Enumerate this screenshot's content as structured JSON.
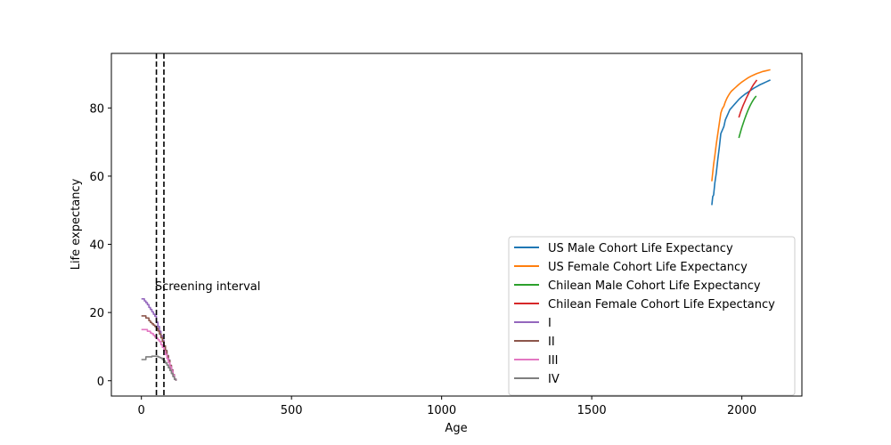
{
  "chart_data": {
    "type": "line",
    "title": "",
    "xlabel": "Age",
    "ylabel": "Life expectancy",
    "xlim": [
      -100,
      2200
    ],
    "ylim": [
      -4.5,
      96
    ],
    "xticks": [
      0,
      500,
      1000,
      1500,
      2000
    ],
    "yticks": [
      0,
      20,
      40,
      60,
      80
    ],
    "grid": false,
    "legend_position": "lower right",
    "series": [
      {
        "name": "US Male Cohort Life Expectancy",
        "color": "#1f77b4",
        "style": "line",
        "x": [
          1900,
          1903,
          1906,
          1910,
          1915,
          1920,
          1925,
          1930,
          1935,
          1940,
          1945,
          1950,
          1955,
          1960,
          1965,
          1970,
          1975,
          1980,
          1985,
          1990,
          2000,
          2010,
          2020,
          2030,
          2040,
          2050,
          2060,
          2070,
          2080,
          2090,
          2095
        ],
        "y": [
          51.5,
          54,
          54.5,
          58,
          61,
          65,
          68.5,
          72.5,
          73.5,
          74.5,
          76.5,
          77.5,
          78.5,
          79.5,
          80,
          80.5,
          81,
          81.5,
          82,
          82.5,
          83.3,
          84,
          84.6,
          85.2,
          85.8,
          86.3,
          86.8,
          87.2,
          87.6,
          88,
          88.2
        ]
      },
      {
        "name": "US Female Cohort Life Expectancy",
        "color": "#ff7f0e",
        "style": "line",
        "x": [
          1900,
          1903,
          1906,
          1910,
          1915,
          1920,
          1925,
          1930,
          1935,
          1940,
          1945,
          1950,
          1955,
          1960,
          1965,
          1970,
          1975,
          1980,
          1985,
          1990,
          2000,
          2010,
          2020,
          2030,
          2040,
          2050,
          2060,
          2070,
          2080,
          2090,
          2095
        ],
        "y": [
          58.5,
          61,
          63.5,
          66,
          69.5,
          72.5,
          75.5,
          78.5,
          79.8,
          80.5,
          81.8,
          82.8,
          83.6,
          84.3,
          84.9,
          85.3,
          85.7,
          86.1,
          86.5,
          86.9,
          87.6,
          88.2,
          88.8,
          89.3,
          89.7,
          90.1,
          90.4,
          90.7,
          90.9,
          91.1,
          91.2
        ]
      },
      {
        "name": "Chilean Male Cohort Life Expectancy",
        "color": "#2ca02c",
        "style": "line",
        "x": [
          1990,
          1995,
          2000,
          2005,
          2010,
          2015,
          2020,
          2025,
          2030,
          2035,
          2040,
          2045,
          2048
        ],
        "y": [
          71.2,
          72.8,
          74.3,
          75.6,
          76.9,
          78.1,
          79.2,
          80.2,
          81.1,
          81.9,
          82.6,
          83.2,
          83.5
        ]
      },
      {
        "name": "Chilean Female Cohort Life Expectancy",
        "color": "#d62728",
        "style": "line",
        "x": [
          1990,
          1995,
          2000,
          2005,
          2010,
          2015,
          2020,
          2025,
          2030,
          2035,
          2040,
          2045,
          2050
        ],
        "y": [
          77.2,
          78.6,
          79.8,
          80.9,
          81.9,
          82.9,
          83.8,
          84.7,
          85.5,
          86.3,
          87,
          87.6,
          88.2
        ]
      },
      {
        "name": "I",
        "color": "#9467bd",
        "style": "step",
        "x": [
          0,
          5,
          10,
          15,
          20,
          25,
          30,
          35,
          40,
          45,
          50,
          55,
          60,
          65,
          70,
          75,
          80,
          85,
          90,
          95,
          100,
          105,
          110,
          115
        ],
        "y": [
          24,
          24,
          23.4,
          22.9,
          22.3,
          21.5,
          20.9,
          20.2,
          19.5,
          18.9,
          17.2,
          15.9,
          14.5,
          13.2,
          11.9,
          10.2,
          8.9,
          7.4,
          6.1,
          4.5,
          3.2,
          1.8,
          0.5,
          0
        ]
      },
      {
        "name": "II",
        "color": "#8c564b",
        "style": "step",
        "x": [
          0,
          5,
          10,
          15,
          20,
          25,
          30,
          35,
          40,
          45,
          50,
          55,
          60,
          65,
          70,
          75,
          80,
          85,
          90,
          95,
          100,
          105,
          110,
          115
        ],
        "y": [
          19,
          19,
          19,
          18.4,
          18.4,
          17.6,
          17.1,
          16.7,
          16.3,
          15.9,
          15.4,
          14.6,
          13.7,
          12.6,
          11.5,
          10.2,
          8.8,
          7.3,
          5.9,
          4.5,
          3.1,
          1.8,
          0.5,
          0
        ]
      },
      {
        "name": "III",
        "color": "#e377c2",
        "style": "step",
        "x": [
          0,
          5,
          10,
          15,
          20,
          25,
          30,
          35,
          40,
          45,
          50,
          55,
          60,
          65,
          70,
          75,
          80,
          85,
          90,
          95,
          100,
          105,
          110,
          115
        ],
        "y": [
          15,
          15,
          15,
          15,
          14.5,
          14.5,
          14,
          13.8,
          13.3,
          12.8,
          12.5,
          12,
          11.5,
          10.6,
          9.8,
          8.7,
          7.7,
          6.5,
          5.3,
          4.1,
          2.9,
          1.7,
          0.5,
          0
        ]
      },
      {
        "name": "IV",
        "color": "#7f7f7f",
        "style": "step",
        "x": [
          0,
          5,
          10,
          15,
          20,
          25,
          30,
          35,
          40,
          45,
          50,
          55,
          60,
          65,
          70,
          75,
          80,
          85,
          90,
          95,
          100,
          105,
          110,
          115
        ],
        "y": [
          6.2,
          6.2,
          6.2,
          7,
          7,
          7,
          7,
          7.2,
          7.2,
          7.2,
          7.2,
          7,
          6.8,
          6.6,
          6.2,
          5.8,
          5.2,
          4.6,
          3.8,
          3,
          2.1,
          1.2,
          0.4,
          0
        ]
      }
    ],
    "vlines": [
      50,
      75
    ],
    "annotations": [
      {
        "text": "Screening interval",
        "x": 45,
        "y": 26.5
      }
    ]
  }
}
